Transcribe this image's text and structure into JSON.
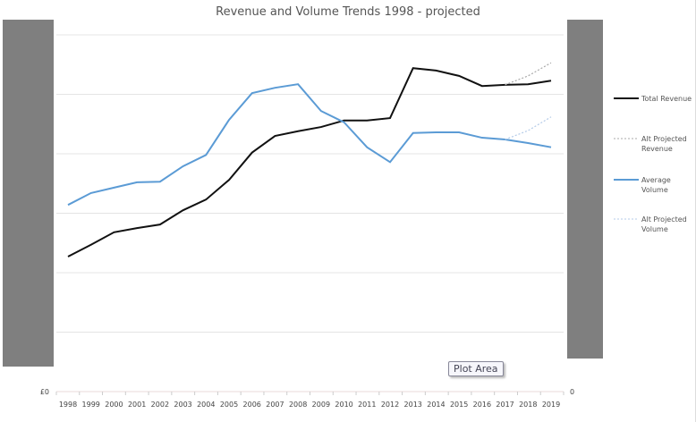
{
  "chart_data": {
    "type": "line",
    "title": "Revenue and Volume Trends 1998 - projected",
    "categories": [
      "1998",
      "1999",
      "2000",
      "2001",
      "2002",
      "2003",
      "2004",
      "2005",
      "2006",
      "2007",
      "2008",
      "2009",
      "2010",
      "2011",
      "2012",
      "2013",
      "2014",
      "2015",
      "2016",
      "2017",
      "2018",
      "2019"
    ],
    "y_left_tick": "£0",
    "y_right_tick": "0",
    "ylim": [
      0,
      6
    ],
    "grid": true,
    "legend": "right",
    "series": [
      {
        "name": "Total Revenue",
        "color": "#111111",
        "dash": false,
        "values": [
          2.27,
          2.47,
          2.68,
          2.75,
          2.81,
          3.05,
          3.23,
          3.56,
          4.02,
          4.3,
          4.38,
          4.45,
          4.56,
          4.56,
          4.6,
          5.44,
          5.4,
          5.31,
          5.14,
          5.16,
          5.17,
          5.23
        ]
      },
      {
        "name": "Alt Projected Revenue",
        "color": "#aaaaaa",
        "dash": true,
        "values": [
          null,
          null,
          null,
          null,
          null,
          null,
          null,
          null,
          null,
          null,
          null,
          null,
          null,
          null,
          null,
          null,
          null,
          null,
          null,
          5.16,
          5.31,
          5.53
        ]
      },
      {
        "name": "Average Volume",
        "color": "#5b9bd5",
        "dash": false,
        "values": [
          3.14,
          3.34,
          3.43,
          3.52,
          3.53,
          3.79,
          3.98,
          4.57,
          5.02,
          5.11,
          5.17,
          4.72,
          4.53,
          4.11,
          3.86,
          4.35,
          4.36,
          4.36,
          4.27,
          4.24,
          4.18,
          4.11
        ]
      },
      {
        "name": "Alt Projected Volume",
        "color": "#b4cbe8",
        "dash": true,
        "values": [
          null,
          null,
          null,
          null,
          null,
          null,
          null,
          null,
          null,
          null,
          null,
          null,
          null,
          null,
          null,
          null,
          null,
          null,
          null,
          4.24,
          4.39,
          4.62
        ]
      }
    ]
  },
  "legend_lines": [
    [
      "Total Revenue"
    ],
    [
      "Alt Projected",
      "Revenue"
    ],
    [
      "Average",
      "Volume"
    ],
    [
      "Alt Projected",
      "Volume"
    ]
  ],
  "tooltip": "Plot Area"
}
